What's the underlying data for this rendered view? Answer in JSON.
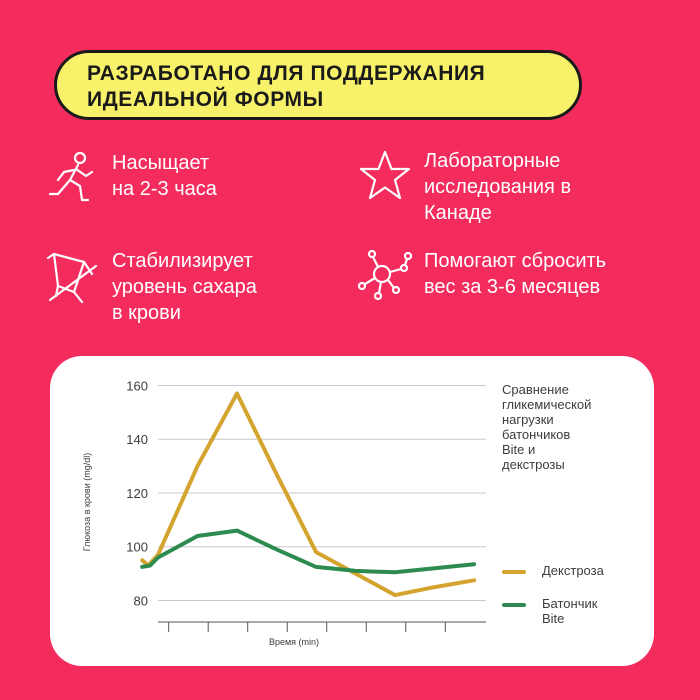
{
  "banner": {
    "line1": "РАЗРАБОТАНО ДЛЯ ПОДДЕРЖАНИЯ",
    "line2": "ИДЕАЛЬНОЙ ФОРМЫ"
  },
  "features": [
    {
      "icon": "runner-icon",
      "lines": [
        "Насыщает",
        "на 2-3 часа"
      ]
    },
    {
      "icon": "star-icon",
      "lines": [
        "Лабораторные",
        "исследования в",
        "Канаде"
      ]
    },
    {
      "icon": "drink-icon",
      "lines": [
        "Стабилизирует",
        "уровень сахара",
        "в крови"
      ]
    },
    {
      "icon": "molecule-icon",
      "lines": [
        "Помогают сбросить",
        "вес за 3-6 месяцев"
      ]
    }
  ],
  "colors": {
    "background": "#f42c5e",
    "banner": "#f8f26b",
    "dextrose": "#d4a42e",
    "bite": "#2e8b4f"
  },
  "chart_data": {
    "type": "line",
    "caption": [
      "Сравнение",
      "гликемической",
      "нагрузки",
      "батончиков",
      "Bite и",
      "декстрозы"
    ],
    "xlabel": "Время (min)",
    "ylabel": "Глюкоза в крови (mg/dl)",
    "yticks": [
      80,
      100,
      120,
      140,
      160
    ],
    "ylim": [
      72,
      165
    ],
    "xlim": [
      0,
      8.3
    ],
    "xtick_count": 8,
    "grid": true,
    "legend_position": "right",
    "series": [
      {
        "name": "Декстроза",
        "color": "#d4a42e",
        "x": [
          -0.4,
          -0.25,
          0,
          1,
          2,
          3,
          4,
          5,
          6,
          7,
          8
        ],
        "y": [
          95,
          93,
          97,
          130,
          157,
          127,
          98,
          90,
          82,
          85,
          87.5
        ]
      },
      {
        "name": "Батончик Bite",
        "legend_lines": [
          "Батончик",
          "Bite"
        ],
        "color": "#2e8b4f",
        "x": [
          -0.4,
          -0.2,
          0,
          1,
          2,
          3,
          4,
          5,
          6,
          7,
          8
        ],
        "y": [
          92.5,
          93,
          96,
          104,
          106,
          99,
          92.5,
          91,
          90.5,
          92,
          93.5
        ]
      }
    ]
  }
}
